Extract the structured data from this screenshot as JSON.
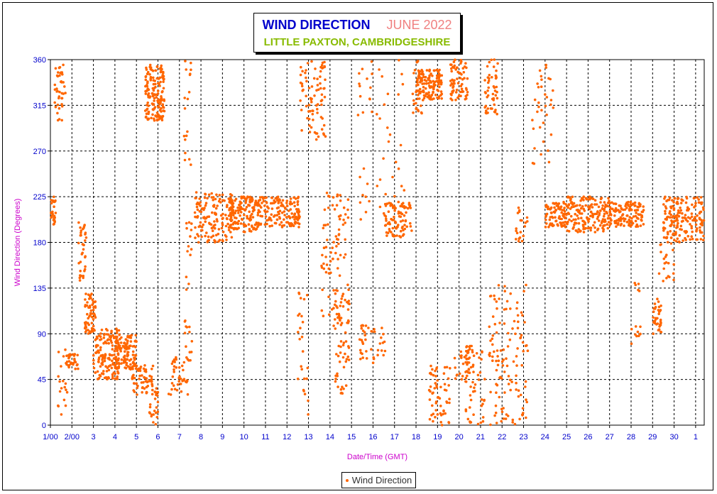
{
  "chart_data": {
    "type": "scatter",
    "title": "WIND DIRECTION",
    "subtitle": "JUNE 2022",
    "location": "LITTLE PAXTON, CAMBRIDGESHIRE",
    "xlabel": "Date/Time (GMT)",
    "ylabel": "Wind Direction (Degrees)",
    "ylim": [
      0,
      360
    ],
    "xlim": [
      0,
      30.4
    ],
    "grid": true,
    "legend_position": "bottom-center",
    "marker_color": "#ff6600",
    "title_color": "#0000cc",
    "subtitle_color": "#f08080",
    "location_color": "#88bb00",
    "axis_text_color": "#0000cc",
    "label_color": "#cc00cc",
    "y_ticks": [
      "0",
      "45",
      "90",
      "135",
      "180",
      "225",
      "270",
      "315",
      "360"
    ],
    "x_tick_values": [
      0,
      1,
      2,
      3,
      4,
      5,
      6,
      7,
      8,
      9,
      10,
      11,
      12,
      13,
      14,
      15,
      16,
      17,
      18,
      19,
      20,
      21,
      22,
      23,
      24,
      25,
      26,
      27,
      28,
      29,
      30
    ],
    "x_tick_labels": [
      "1/00",
      "2/00",
      "3",
      "4",
      "5",
      "6",
      "7",
      "8",
      "9",
      "10",
      "11",
      "12",
      "13",
      "14",
      "15",
      "16",
      "17",
      "18",
      "19",
      "20",
      "21",
      "22",
      "23",
      "24",
      "25",
      "26",
      "27",
      "28",
      "29",
      "30",
      "1"
    ],
    "series": [
      {
        "name": "Wind Direction",
        "clusters": [
          {
            "x0": 0.0,
            "x1": 0.25,
            "y0": 195,
            "y1": 225,
            "n": 25
          },
          {
            "x0": 0.2,
            "x1": 0.7,
            "y0": 300,
            "y1": 355,
            "n": 40
          },
          {
            "x0": 0.3,
            "x1": 0.9,
            "y0": 10,
            "y1": 80,
            "n": 20
          },
          {
            "x0": 0.7,
            "x1": 1.3,
            "y0": 55,
            "y1": 70,
            "n": 30
          },
          {
            "x0": 1.3,
            "x1": 1.7,
            "y0": 140,
            "y1": 200,
            "n": 35
          },
          {
            "x0": 1.6,
            "x1": 2.1,
            "y0": 90,
            "y1": 130,
            "n": 60
          },
          {
            "x0": 2.0,
            "x1": 3.2,
            "y0": 45,
            "y1": 95,
            "n": 150
          },
          {
            "x0": 3.0,
            "x1": 4.0,
            "y0": 55,
            "y1": 90,
            "n": 120
          },
          {
            "x0": 3.8,
            "x1": 4.8,
            "y0": 30,
            "y1": 60,
            "n": 60
          },
          {
            "x0": 4.4,
            "x1": 5.3,
            "y0": 300,
            "y1": 355,
            "n": 160
          },
          {
            "x0": 4.6,
            "x1": 5.0,
            "y0": 0,
            "y1": 40,
            "n": 25
          },
          {
            "x0": 5.5,
            "x1": 6.4,
            "y0": 30,
            "y1": 70,
            "n": 40
          },
          {
            "x0": 6.2,
            "x1": 6.6,
            "y0": 60,
            "y1": 360,
            "n": 45
          },
          {
            "x0": 6.7,
            "x1": 8.5,
            "y0": 180,
            "y1": 230,
            "n": 140
          },
          {
            "x0": 8.3,
            "x1": 9.6,
            "y0": 190,
            "y1": 225,
            "n": 140
          },
          {
            "x0": 9.5,
            "x1": 11.6,
            "y0": 195,
            "y1": 225,
            "n": 160
          },
          {
            "x0": 11.6,
            "x1": 12.8,
            "y0": 280,
            "y1": 360,
            "n": 80
          },
          {
            "x0": 11.5,
            "x1": 12.0,
            "y0": 10,
            "y1": 140,
            "n": 25
          },
          {
            "x0": 12.6,
            "x1": 13.9,
            "y0": 100,
            "y1": 230,
            "n": 90
          },
          {
            "x0": 13.1,
            "x1": 13.9,
            "y0": 30,
            "y1": 130,
            "n": 55
          },
          {
            "x0": 14.3,
            "x1": 16.5,
            "y0": 200,
            "y1": 360,
            "n": 50
          },
          {
            "x0": 14.3,
            "x1": 15.6,
            "y0": 60,
            "y1": 100,
            "n": 40
          },
          {
            "x0": 15.5,
            "x1": 16.8,
            "y0": 185,
            "y1": 220,
            "n": 90
          },
          {
            "x0": 16.8,
            "x1": 17.3,
            "y0": 300,
            "y1": 360,
            "n": 25
          },
          {
            "x0": 17.0,
            "x1": 18.2,
            "y0": 320,
            "y1": 350,
            "n": 130
          },
          {
            "x0": 17.6,
            "x1": 18.6,
            "y0": 0,
            "y1": 60,
            "n": 60
          },
          {
            "x0": 18.6,
            "x1": 19.4,
            "y0": 320,
            "y1": 360,
            "n": 70
          },
          {
            "x0": 18.8,
            "x1": 19.7,
            "y0": 40,
            "y1": 80,
            "n": 40
          },
          {
            "x0": 19.3,
            "x1": 20.2,
            "y0": 0,
            "y1": 80,
            "n": 45
          },
          {
            "x0": 20.2,
            "x1": 20.8,
            "y0": 300,
            "y1": 360,
            "n": 50
          },
          {
            "x0": 20.4,
            "x1": 22.2,
            "y0": 0,
            "y1": 140,
            "n": 120
          },
          {
            "x0": 21.6,
            "x1": 22.2,
            "y0": 180,
            "y1": 215,
            "n": 20
          },
          {
            "x0": 22.4,
            "x1": 23.4,
            "y0": 250,
            "y1": 360,
            "n": 35
          },
          {
            "x0": 23.0,
            "x1": 24.0,
            "y0": 195,
            "y1": 220,
            "n": 90
          },
          {
            "x0": 24.0,
            "x1": 26.0,
            "y0": 190,
            "y1": 225,
            "n": 170
          },
          {
            "x0": 26.0,
            "x1": 27.6,
            "y0": 195,
            "y1": 220,
            "n": 130
          },
          {
            "x0": 27.0,
            "x1": 27.5,
            "y0": 80,
            "y1": 140,
            "n": 15
          },
          {
            "x0": 28.0,
            "x1": 28.4,
            "y0": 90,
            "y1": 125,
            "n": 35
          },
          {
            "x0": 28.3,
            "x1": 29.0,
            "y0": 140,
            "y1": 180,
            "n": 20
          },
          {
            "x0": 28.5,
            "x1": 30.4,
            "y0": 180,
            "y1": 225,
            "n": 180
          }
        ]
      }
    ]
  }
}
